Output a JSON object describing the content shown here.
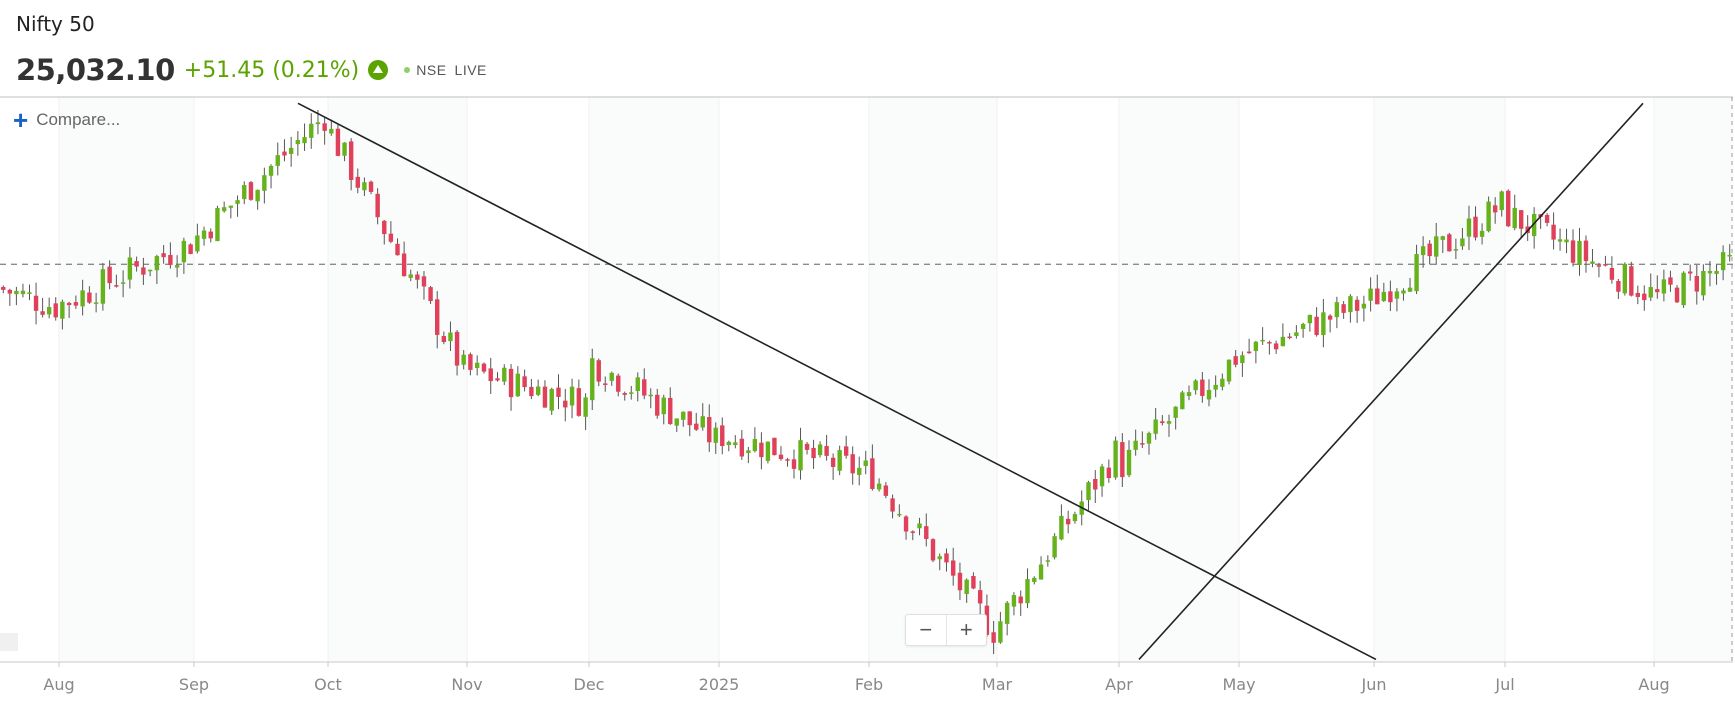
{
  "header": {
    "title": "Nifty 50",
    "price": "25,032.10",
    "change": "+51.45 (0.21%)",
    "exchange": "NSE",
    "status": "LIVE"
  },
  "controls": {
    "compare_label": "Compare...",
    "zoom_out": "−",
    "zoom_in": "+"
  },
  "colors": {
    "up": "#66b21d",
    "down": "#e0405a",
    "wick": "#555555",
    "trendline": "#222222",
    "accent": "#1a62c9",
    "positive_text": "#5aa300"
  },
  "chart_data": {
    "type": "candlestick",
    "title": "Nifty 50",
    "x_axis": {
      "ticks": [
        "Aug",
        "Sep",
        "Oct",
        "Nov",
        "Dec",
        "2025",
        "Feb",
        "Mar",
        "Apr",
        "May",
        "Jun",
        "Jul",
        "Aug"
      ]
    },
    "ylim": [
      21900,
      26350
    ],
    "reference_line": {
      "value": 25032.1,
      "style": "dashed"
    },
    "grid": true,
    "monthly_segments": [
      {
        "month": "Jul-2024",
        "start": 24850,
        "end": 24700
      },
      {
        "month": "Aug-2024",
        "start": 24700,
        "end": 25200
      },
      {
        "month": "Sep-2024",
        "start": 25200,
        "end": 26200
      },
      {
        "month": "Oct-2024",
        "start": 26150,
        "end": 24200
      },
      {
        "month": "Nov-2024",
        "start": 24200,
        "end": 23950
      },
      {
        "month": "Dec-2024",
        "start": 24300,
        "end": 23650
      },
      {
        "month": "Jan-2025",
        "start": 23700,
        "end": 23400
      },
      {
        "month": "Feb-2025",
        "start": 23450,
        "end": 22150
      },
      {
        "month": "Mar-2025",
        "start": 22150,
        "end": 23550
      },
      {
        "month": "Apr-2025",
        "start": 23400,
        "end": 24300
      },
      {
        "month": "May-2025",
        "start": 24300,
        "end": 24750
      },
      {
        "month": "Jun-2025",
        "start": 24750,
        "end": 25500
      },
      {
        "month": "Jul-2025",
        "start": 25450,
        "end": 24800
      },
      {
        "month": "Aug-2025",
        "start": 24750,
        "end": 25030
      }
    ],
    "trendlines": [
      {
        "from": {
          "date": "Sep-27-2024",
          "value": 26300
        },
        "to": {
          "date": "Jun-01-2025",
          "value": 21920
        }
      },
      {
        "from": {
          "date": "Apr-07-2025",
          "value": 21920
        },
        "to": {
          "date": "Aug-01-2025",
          "value": 26300
        }
      }
    ]
  }
}
